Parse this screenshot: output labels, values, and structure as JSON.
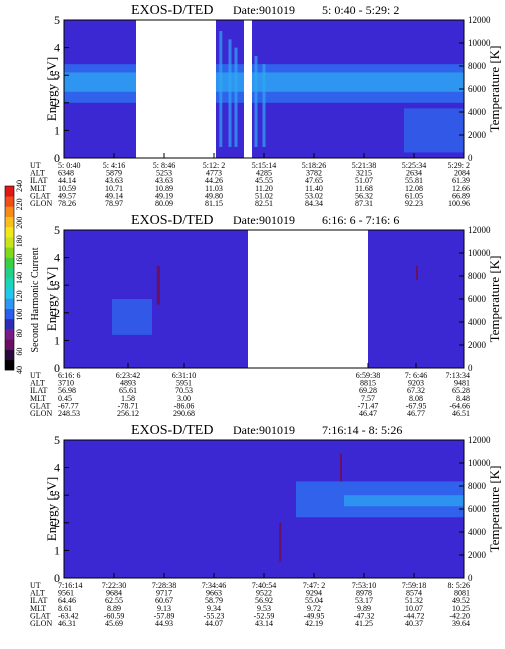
{
  "colorbar": {
    "label": "Second Harmonic Current",
    "ticks": [
      "40",
      "60",
      "80",
      "100",
      "120",
      "140",
      "160",
      "180",
      "200",
      "220",
      "240"
    ],
    "colors": [
      "#000000",
      "#2a0a3c",
      "#6a1060",
      "#7a1a8a",
      "#2c2cb8",
      "#2d5cf0",
      "#2e96f5",
      "#22c8ea",
      "#18d7b8",
      "#24d088",
      "#3ad040",
      "#80d818",
      "#c8e418",
      "#f0e818",
      "#f8c018",
      "#f88a18",
      "#f05018",
      "#e01818"
    ]
  },
  "chart_data": [
    {
      "type": "heatmap",
      "title": "EXOS-D/TED",
      "date_text": "Date:901019",
      "time_range": "5: 0:40 - 5:29: 2",
      "ylabel": "Energy [eV]",
      "ylabel2": "Temperature [K]",
      "ylim": [
        0,
        5
      ],
      "y2lim": [
        0,
        12000
      ],
      "yticks": [
        "0",
        "1",
        "2",
        "3",
        "4",
        "5"
      ],
      "y2ticks": [
        "0",
        "2000",
        "4000",
        "6000",
        "8000",
        "10000",
        "12000"
      ],
      "row_labels": [
        "UT",
        "ALT",
        "ILAT",
        "MLT",
        "GLAT",
        "GLON"
      ],
      "columns": [
        [
          "5: 0:40",
          "6348",
          "44.14",
          "10.59",
          "49.57",
          "78.26"
        ],
        [
          "5: 4:16",
          "5879",
          "43.63",
          "10.71",
          "49.14",
          "78.97"
        ],
        [
          "5: 8:46",
          "5253",
          "43.63",
          "10.89",
          "49.19",
          "80.09"
        ],
        [
          "5:12: 2",
          "4773",
          "44.26",
          "11.03",
          "49.80",
          "81.15"
        ],
        [
          "5:15:14",
          "4285",
          "45.55",
          "11.20",
          "51.02",
          "82.51"
        ],
        [
          "5:18:26",
          "3782",
          "47.65",
          "11.40",
          "53.02",
          "84.34"
        ],
        [
          "5:21:38",
          "3215",
          "51.07",
          "11.68",
          "56.32",
          "87.31"
        ],
        [
          "5:25:34",
          "2634",
          "55.81",
          "12.08",
          "61.05",
          "92.23"
        ],
        [
          "5:29: 2",
          "2084",
          "61.39",
          "12.66",
          "66.89",
          "100.96"
        ]
      ],
      "no_data_gaps": [
        [
          0.18,
          0.38
        ],
        [
          0.45,
          0.47
        ]
      ]
    },
    {
      "type": "heatmap",
      "title": "EXOS-D/TED",
      "date_text": "Date:901019",
      "time_range": "6:16: 6 - 7:16: 6",
      "ylabel": "Energy [eV]",
      "ylabel2": "Temperature [K]",
      "ylim": [
        0,
        5
      ],
      "y2lim": [
        0,
        12000
      ],
      "yticks": [
        "0",
        "1",
        "2",
        "3",
        "4",
        "5"
      ],
      "y2ticks": [
        "0",
        "2000",
        "4000",
        "6000",
        "8000",
        "10000",
        "12000"
      ],
      "row_labels": [
        "UT",
        "ALT",
        "ILAT",
        "MLT",
        "GLAT",
        "GLON"
      ],
      "columns": [
        [
          "6:16: 6",
          "3710",
          "56.98",
          "0.45",
          "-67.77",
          "248.53"
        ],
        [
          "6:23:42",
          "4893",
          "65.61",
          "1.58",
          "-78.71",
          "256.12"
        ],
        [
          "6:31:10",
          "5951",
          "70.53",
          "3.00",
          "-86.06",
          "290.68"
        ],
        [
          "6:59:38",
          "8815",
          "69.28",
          "7.57",
          "-71.47",
          "46.47"
        ],
        [
          "7: 6:46",
          "9203",
          "67.32",
          "8.08",
          "-67.95",
          "46.77"
        ],
        [
          "7:13:34",
          "9481",
          "65.28",
          "8.48",
          "-64.66",
          "46.51"
        ]
      ],
      "no_data_gaps": [
        [
          0.46,
          0.76
        ]
      ]
    },
    {
      "type": "heatmap",
      "title": "EXOS-D/TED",
      "date_text": "Date:901019",
      "time_range": "7:16:14 - 8: 5:26",
      "ylabel": "Energy [eV]",
      "ylabel2": "Temperature [K]",
      "ylim": [
        0,
        5
      ],
      "y2lim": [
        0,
        12000
      ],
      "yticks": [
        "0",
        "1",
        "2",
        "3",
        "4",
        "5"
      ],
      "y2ticks": [
        "0",
        "2000",
        "4000",
        "6000",
        "8000",
        "10000",
        "12000"
      ],
      "row_labels": [
        "UT",
        "ALT",
        "ILAT",
        "MLT",
        "GLAT",
        "GLON"
      ],
      "columns": [
        [
          "7:16:14",
          "9561",
          "64.46",
          "8.61",
          "-63.42",
          "46.31"
        ],
        [
          "7:22:30",
          "9684",
          "62.55",
          "8.89",
          "-60.59",
          "45.69"
        ],
        [
          "7:28:38",
          "9717",
          "60.67",
          "9.13",
          "-57.89",
          "44.93"
        ],
        [
          "7:34:46",
          "9663",
          "58.79",
          "9.34",
          "-55.23",
          "44.07"
        ],
        [
          "7:40:54",
          "9522",
          "56.92",
          "9.53",
          "-52.59",
          "43.14"
        ],
        [
          "7:47: 2",
          "9294",
          "55.04",
          "9.72",
          "-49.95",
          "42.19"
        ],
        [
          "7:53:10",
          "8978",
          "53.17",
          "9.89",
          "-47.32",
          "41.25"
        ],
        [
          "7:59:18",
          "8574",
          "51.32",
          "10.07",
          "-44.72",
          "40.37"
        ],
        [
          "8: 5:26",
          "8081",
          "49.52",
          "10.25",
          "-42.20",
          "39.64"
        ]
      ],
      "no_data_gaps": []
    }
  ]
}
